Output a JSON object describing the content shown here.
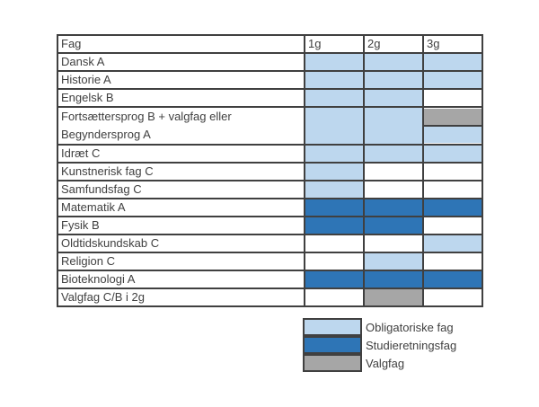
{
  "colors": {
    "obligatorisk": "#bdd7ee",
    "studieretning": "#2e75b6",
    "valgfag": "#a6a6a6",
    "none": "#ffffff"
  },
  "header": [
    "Fag",
    "1g",
    "2g",
    "3g"
  ],
  "rows": [
    {
      "label": "Dansk A",
      "cells": [
        "obligatorisk",
        "obligatorisk",
        "obligatorisk"
      ]
    },
    {
      "label": "Historie A",
      "cells": [
        "obligatorisk",
        "obligatorisk",
        "obligatorisk"
      ]
    },
    {
      "label": "Engelsk B",
      "cells": [
        "obligatorisk",
        "obligatorisk",
        "none"
      ]
    },
    {
      "label_lines": [
        "Fortsættersprog B + valgfag eller",
        "Begyndersprog A"
      ],
      "cells": [
        "obligatorisk",
        "obligatorisk",
        [
          "valgfag",
          "obligatorisk"
        ]
      ]
    },
    {
      "label": "Idræt C",
      "cells": [
        "obligatorisk",
        "obligatorisk",
        "obligatorisk"
      ]
    },
    {
      "label": "Kunstnerisk fag C",
      "cells": [
        "obligatorisk",
        "none",
        "none"
      ]
    },
    {
      "label": "Samfundsfag C",
      "cells": [
        "obligatorisk",
        "none",
        "none"
      ]
    },
    {
      "label": "Matematik A",
      "cells": [
        "studieretning",
        "studieretning",
        "studieretning"
      ]
    },
    {
      "label": "Fysik B",
      "cells": [
        "studieretning",
        "studieretning",
        "none"
      ]
    },
    {
      "label": "Oldtidskundskab C",
      "cells": [
        "none",
        "none",
        "obligatorisk"
      ]
    },
    {
      "label": "Religion C",
      "cells": [
        "none",
        "obligatorisk",
        "none"
      ]
    },
    {
      "label": "Bioteknologi A",
      "cells": [
        "studieretning",
        "studieretning",
        "studieretning"
      ]
    },
    {
      "label": "Valgfag C/B i 2g",
      "cells": [
        "none",
        "valgfag",
        "none"
      ]
    }
  ],
  "legend": [
    {
      "key": "obligatorisk",
      "label": "Obligatoriske fag"
    },
    {
      "key": "studieretning",
      "label": "Studieretningsfag"
    },
    {
      "key": "valgfag",
      "label": "Valgfag"
    }
  ]
}
